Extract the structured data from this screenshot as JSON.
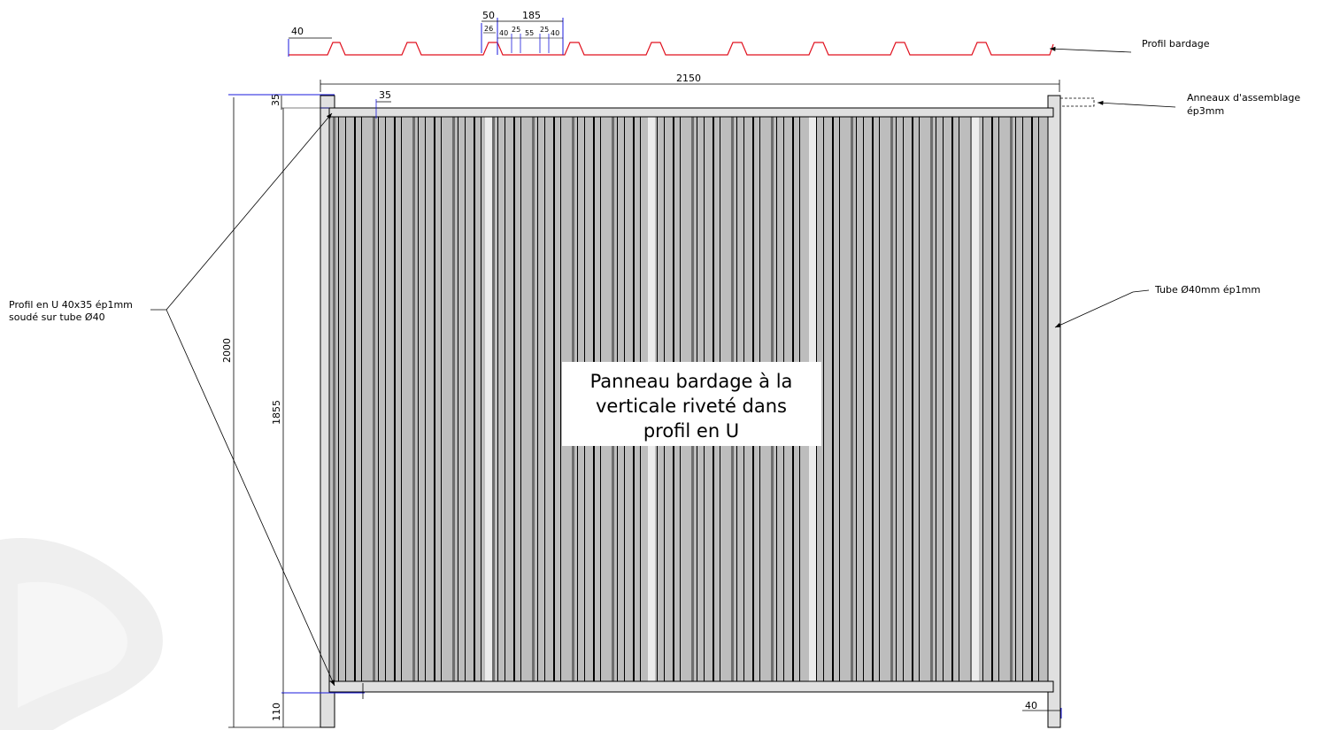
{
  "colors": {
    "profile_line": "#e0101e",
    "dim_blue": "#1a1adc",
    "panel_fill": "#bdbdbd",
    "frame_fill": "#e0e0e0",
    "dark_stripe": "#6e6e6e",
    "light_stripe": "#ececec",
    "watermark": "#ececec"
  },
  "profile": {
    "dims": [
      "40",
      "50",
      "185",
      "26",
      "40",
      "25",
      "55",
      "25",
      "40"
    ]
  },
  "dimensions": {
    "overall_width": "2150",
    "top_rail": "35",
    "frame_offset": "35",
    "overall_height": "2000",
    "panel_height": "1855",
    "foot_height": "110",
    "post_width": "40"
  },
  "callouts": {
    "profil_bardage": "Profil bardage",
    "anneaux_line1": "Anneaux d'assemblage",
    "anneaux_line2": "ép3mm",
    "profil_u_line1": "Profil en U 40x35 ép1mm",
    "profil_u_line2": "soudé sur tube Ø40",
    "tube": "Tube Ø40mm ép1mm"
  },
  "center_label": {
    "line1": "Panneau bardage à la",
    "line2": "verticale riveté dans",
    "line3": "profil en U"
  }
}
